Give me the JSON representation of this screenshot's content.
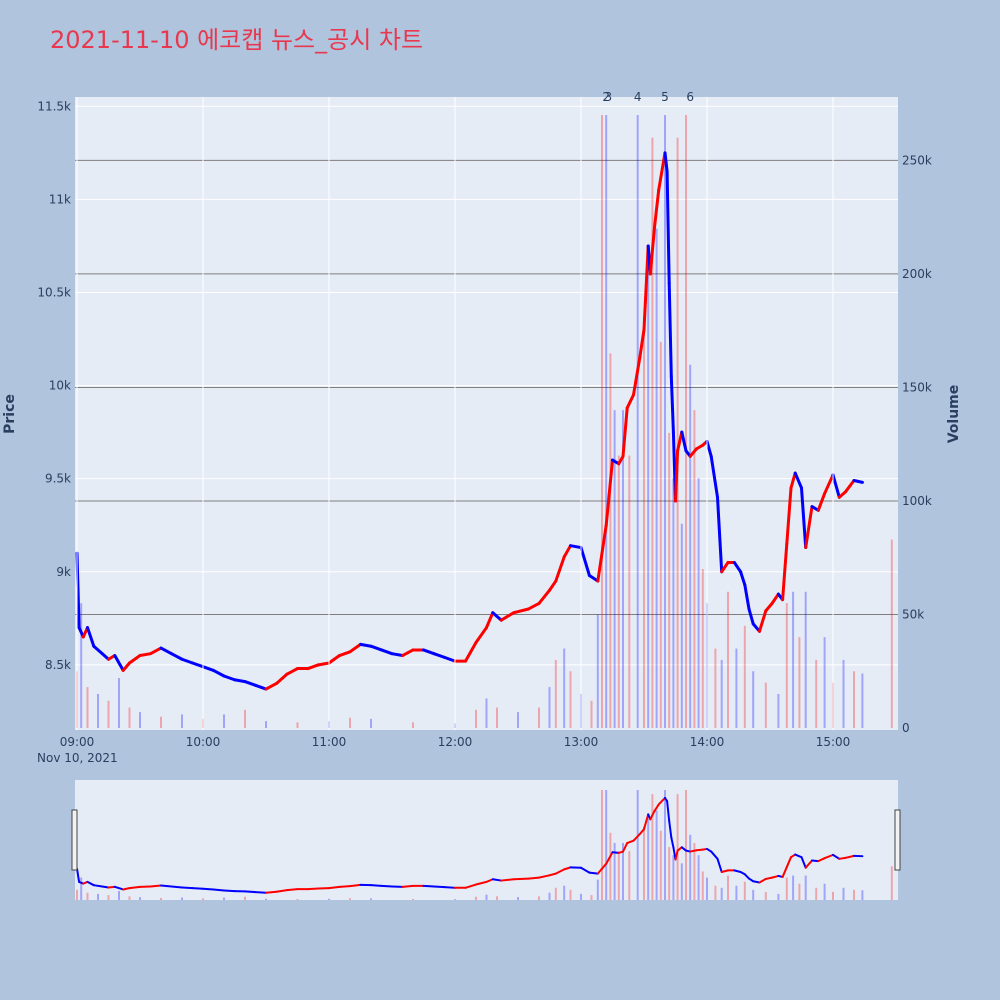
{
  "title": "2021-11-10 에코캡 뉴스_공시 차트",
  "colors": {
    "background": "#b0c4de",
    "plot_bg": "#e5ecf6",
    "up": "#ff0000",
    "down": "#0000ff",
    "title": "#e8384f",
    "text": "#2a3f5f",
    "volume_grid": "#7f7f7f"
  },
  "chart_data": {
    "type": "line",
    "x_label_date": "Nov 10, 2021",
    "x_ticks": [
      "09:00",
      "10:00",
      "11:00",
      "12:00",
      "13:00",
      "14:00",
      "15:00"
    ],
    "x_range": [
      "09:00",
      "15:30"
    ],
    "ylabel": "Price",
    "y_range": [
      8150,
      11550
    ],
    "y_ticks": [
      {
        "value": 8500,
        "label": "8.5k"
      },
      {
        "value": 9000,
        "label": "9k"
      },
      {
        "value": 9500,
        "label": "9.5k"
      },
      {
        "value": 10000,
        "label": "10k"
      },
      {
        "value": 10500,
        "label": "10.5k"
      },
      {
        "value": 11000,
        "label": "11k"
      },
      {
        "value": 11500,
        "label": "11.5k"
      }
    ],
    "y2label": "Volume",
    "y2_range": [
      0,
      270000
    ],
    "y2_ticks": [
      {
        "value": 0,
        "label": "0"
      },
      {
        "value": 50000,
        "label": "50k"
      },
      {
        "value": 100000,
        "label": "100k"
      },
      {
        "value": 150000,
        "label": "150k"
      },
      {
        "value": 200000,
        "label": "200k"
      },
      {
        "value": 250000,
        "label": "250k"
      }
    ],
    "price": [
      {
        "t": "09:00",
        "v": 9100
      },
      {
        "t": "09:01",
        "v": 8700
      },
      {
        "t": "09:03",
        "v": 8650
      },
      {
        "t": "09:05",
        "v": 8700
      },
      {
        "t": "09:08",
        "v": 8600
      },
      {
        "t": "09:12",
        "v": 8560
      },
      {
        "t": "09:15",
        "v": 8530
      },
      {
        "t": "09:18",
        "v": 8550
      },
      {
        "t": "09:22",
        "v": 8470
      },
      {
        "t": "09:25",
        "v": 8510
      },
      {
        "t": "09:30",
        "v": 8550
      },
      {
        "t": "09:35",
        "v": 8560
      },
      {
        "t": "09:40",
        "v": 8590
      },
      {
        "t": "09:45",
        "v": 8560
      },
      {
        "t": "09:50",
        "v": 8530
      },
      {
        "t": "09:55",
        "v": 8510
      },
      {
        "t": "10:00",
        "v": 8490
      },
      {
        "t": "10:05",
        "v": 8470
      },
      {
        "t": "10:10",
        "v": 8440
      },
      {
        "t": "10:15",
        "v": 8420
      },
      {
        "t": "10:20",
        "v": 8410
      },
      {
        "t": "10:25",
        "v": 8390
      },
      {
        "t": "10:30",
        "v": 8370
      },
      {
        "t": "10:35",
        "v": 8400
      },
      {
        "t": "10:40",
        "v": 8450
      },
      {
        "t": "10:45",
        "v": 8480
      },
      {
        "t": "10:50",
        "v": 8480
      },
      {
        "t": "10:55",
        "v": 8500
      },
      {
        "t": "11:00",
        "v": 8510
      },
      {
        "t": "11:05",
        "v": 8550
      },
      {
        "t": "11:10",
        "v": 8570
      },
      {
        "t": "11:15",
        "v": 8610
      },
      {
        "t": "11:20",
        "v": 8600
      },
      {
        "t": "11:25",
        "v": 8580
      },
      {
        "t": "11:30",
        "v": 8560
      },
      {
        "t": "11:35",
        "v": 8550
      },
      {
        "t": "11:40",
        "v": 8580
      },
      {
        "t": "11:45",
        "v": 8580
      },
      {
        "t": "11:50",
        "v": 8560
      },
      {
        "t": "11:55",
        "v": 8540
      },
      {
        "t": "12:00",
        "v": 8520
      },
      {
        "t": "12:05",
        "v": 8520
      },
      {
        "t": "12:10",
        "v": 8620
      },
      {
        "t": "12:15",
        "v": 8700
      },
      {
        "t": "12:18",
        "v": 8780
      },
      {
        "t": "12:22",
        "v": 8740
      },
      {
        "t": "12:28",
        "v": 8780
      },
      {
        "t": "12:35",
        "v": 8800
      },
      {
        "t": "12:40",
        "v": 8830
      },
      {
        "t": "12:45",
        "v": 8900
      },
      {
        "t": "12:48",
        "v": 8950
      },
      {
        "t": "12:52",
        "v": 9080
      },
      {
        "t": "12:55",
        "v": 9140
      },
      {
        "t": "13:00",
        "v": 9130
      },
      {
        "t": "13:04",
        "v": 8980
      },
      {
        "t": "13:08",
        "v": 8950
      },
      {
        "t": "13:12",
        "v": 9250
      },
      {
        "t": "13:15",
        "v": 9600
      },
      {
        "t": "13:18",
        "v": 9580
      },
      {
        "t": "13:20",
        "v": 9620
      },
      {
        "t": "13:22",
        "v": 9880
      },
      {
        "t": "13:25",
        "v": 9950
      },
      {
        "t": "13:28",
        "v": 10150
      },
      {
        "t": "13:30",
        "v": 10300
      },
      {
        "t": "13:32",
        "v": 10750
      },
      {
        "t": "13:33",
        "v": 10600
      },
      {
        "t": "13:35",
        "v": 10850
      },
      {
        "t": "13:37",
        "v": 11050
      },
      {
        "t": "13:40",
        "v": 11250
      },
      {
        "t": "13:41",
        "v": 11150
      },
      {
        "t": "13:42",
        "v": 10550
      },
      {
        "t": "13:43",
        "v": 10050
      },
      {
        "t": "13:44",
        "v": 9750
      },
      {
        "t": "13:45",
        "v": 9380
      },
      {
        "t": "13:46",
        "v": 9650
      },
      {
        "t": "13:48",
        "v": 9750
      },
      {
        "t": "13:50",
        "v": 9650
      },
      {
        "t": "13:52",
        "v": 9620
      },
      {
        "t": "13:55",
        "v": 9660
      },
      {
        "t": "13:58",
        "v": 9680
      },
      {
        "t": "14:00",
        "v": 9700
      },
      {
        "t": "14:02",
        "v": 9620
      },
      {
        "t": "14:05",
        "v": 9400
      },
      {
        "t": "14:07",
        "v": 9000
      },
      {
        "t": "14:10",
        "v": 9050
      },
      {
        "t": "14:13",
        "v": 9050
      },
      {
        "t": "14:16",
        "v": 9000
      },
      {
        "t": "14:18",
        "v": 8930
      },
      {
        "t": "14:20",
        "v": 8800
      },
      {
        "t": "14:22",
        "v": 8720
      },
      {
        "t": "14:25",
        "v": 8680
      },
      {
        "t": "14:28",
        "v": 8790
      },
      {
        "t": "14:31",
        "v": 8830
      },
      {
        "t": "14:34",
        "v": 8880
      },
      {
        "t": "14:36",
        "v": 8850
      },
      {
        "t": "14:38",
        "v": 9150
      },
      {
        "t": "14:40",
        "v": 9450
      },
      {
        "t": "14:42",
        "v": 9530
      },
      {
        "t": "14:45",
        "v": 9450
      },
      {
        "t": "14:47",
        "v": 9130
      },
      {
        "t": "14:50",
        "v": 9350
      },
      {
        "t": "14:53",
        "v": 9330
      },
      {
        "t": "14:56",
        "v": 9420
      },
      {
        "t": "15:00",
        "v": 9520
      },
      {
        "t": "15:03",
        "v": 9400
      },
      {
        "t": "15:06",
        "v": 9430
      },
      {
        "t": "15:10",
        "v": 9490
      },
      {
        "t": "15:14",
        "v": 9480
      }
    ],
    "volume": [
      {
        "t": "09:00",
        "v": 25000
      },
      {
        "t": "09:02",
        "v": 55000
      },
      {
        "t": "09:05",
        "v": 18000
      },
      {
        "t": "09:10",
        "v": 15000
      },
      {
        "t": "09:15",
        "v": 12000
      },
      {
        "t": "09:20",
        "v": 22000
      },
      {
        "t": "09:25",
        "v": 9000
      },
      {
        "t": "09:30",
        "v": 7000
      },
      {
        "t": "09:40",
        "v": 5000
      },
      {
        "t": "09:50",
        "v": 6000
      },
      {
        "t": "10:00",
        "v": 4000
      },
      {
        "t": "10:10",
        "v": 6000
      },
      {
        "t": "10:20",
        "v": 8000
      },
      {
        "t": "10:30",
        "v": 3000
      },
      {
        "t": "10:45",
        "v": 2500
      },
      {
        "t": "11:00",
        "v": 3000
      },
      {
        "t": "11:10",
        "v": 4500
      },
      {
        "t": "11:20",
        "v": 4000
      },
      {
        "t": "11:40",
        "v": 2500
      },
      {
        "t": "12:00",
        "v": 2000
      },
      {
        "t": "12:10",
        "v": 8000
      },
      {
        "t": "12:15",
        "v": 13000
      },
      {
        "t": "12:20",
        "v": 9000
      },
      {
        "t": "12:30",
        "v": 7000
      },
      {
        "t": "12:40",
        "v": 9000
      },
      {
        "t": "12:45",
        "v": 18000
      },
      {
        "t": "12:48",
        "v": 30000
      },
      {
        "t": "12:52",
        "v": 35000
      },
      {
        "t": "12:55",
        "v": 25000
      },
      {
        "t": "13:00",
        "v": 15000
      },
      {
        "t": "13:05",
        "v": 12000
      },
      {
        "t": "13:08",
        "v": 50000
      },
      {
        "t": "13:10",
        "v": 270000
      },
      {
        "t": "13:12",
        "v": 270000
      },
      {
        "t": "13:14",
        "v": 165000
      },
      {
        "t": "13:16",
        "v": 140000
      },
      {
        "t": "13:18",
        "v": 120000
      },
      {
        "t": "13:20",
        "v": 140000
      },
      {
        "t": "13:23",
        "v": 120000
      },
      {
        "t": "13:27",
        "v": 270000
      },
      {
        "t": "13:30",
        "v": 180000
      },
      {
        "t": "13:32",
        "v": 200000
      },
      {
        "t": "13:34",
        "v": 260000
      },
      {
        "t": "13:36",
        "v": 220000
      },
      {
        "t": "13:38",
        "v": 170000
      },
      {
        "t": "13:40",
        "v": 270000
      },
      {
        "t": "13:42",
        "v": 130000
      },
      {
        "t": "13:44",
        "v": 110000
      },
      {
        "t": "13:46",
        "v": 260000
      },
      {
        "t": "13:48",
        "v": 90000
      },
      {
        "t": "13:50",
        "v": 270000
      },
      {
        "t": "13:52",
        "v": 160000
      },
      {
        "t": "13:54",
        "v": 140000
      },
      {
        "t": "13:56",
        "v": 110000
      },
      {
        "t": "13:58",
        "v": 70000
      },
      {
        "t": "14:00",
        "v": 55000
      },
      {
        "t": "14:04",
        "v": 35000
      },
      {
        "t": "14:07",
        "v": 30000
      },
      {
        "t": "14:10",
        "v": 60000
      },
      {
        "t": "14:14",
        "v": 35000
      },
      {
        "t": "14:18",
        "v": 45000
      },
      {
        "t": "14:22",
        "v": 25000
      },
      {
        "t": "14:28",
        "v": 20000
      },
      {
        "t": "14:34",
        "v": 15000
      },
      {
        "t": "14:38",
        "v": 55000
      },
      {
        "t": "14:41",
        "v": 60000
      },
      {
        "t": "14:44",
        "v": 40000
      },
      {
        "t": "14:47",
        "v": 60000
      },
      {
        "t": "14:52",
        "v": 30000
      },
      {
        "t": "14:56",
        "v": 40000
      },
      {
        "t": "15:00",
        "v": 20000
      },
      {
        "t": "15:05",
        "v": 30000
      },
      {
        "t": "15:10",
        "v": 25000
      },
      {
        "t": "15:14",
        "v": 24000
      },
      {
        "t": "15:28",
        "v": 83000
      }
    ],
    "annotations": [
      {
        "t": "13:12",
        "text": "2"
      },
      {
        "t": "13:13",
        "text": "3"
      },
      {
        "t": "13:27",
        "text": "4"
      },
      {
        "t": "13:40",
        "text": "5"
      },
      {
        "t": "13:52",
        "text": "6"
      }
    ]
  }
}
